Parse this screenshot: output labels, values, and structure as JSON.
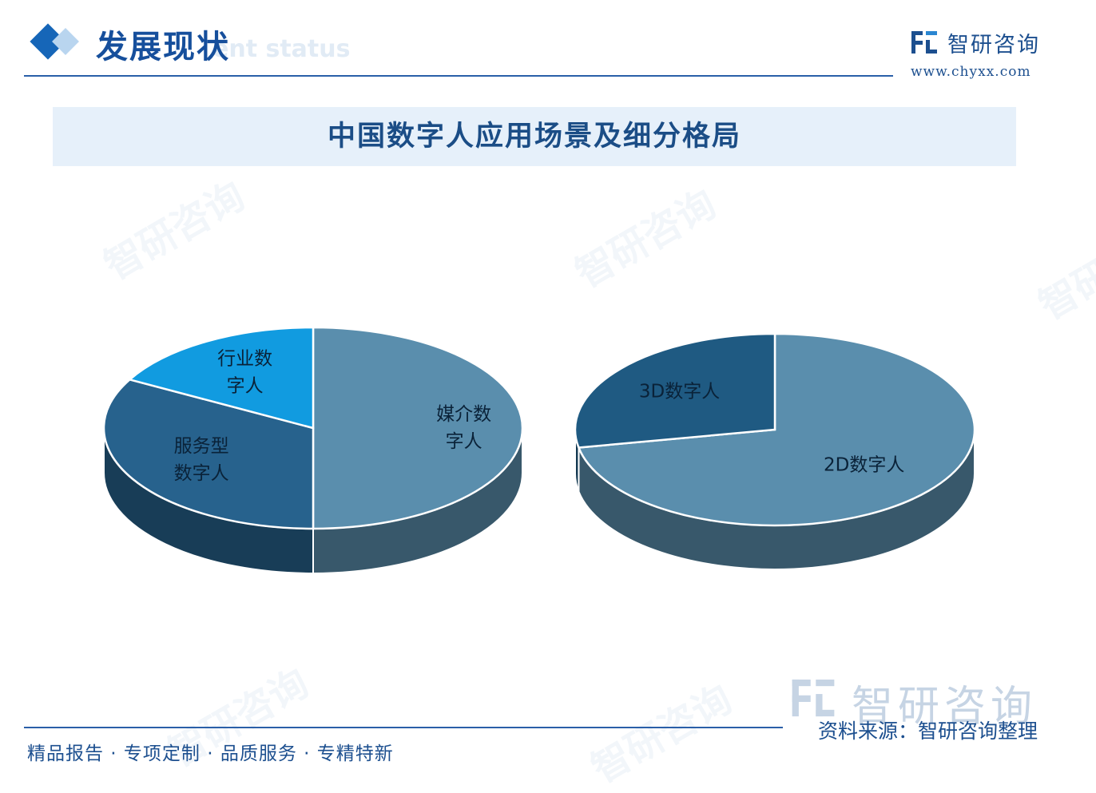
{
  "header": {
    "section_title": "发展现状",
    "section_subtitle": "ent status",
    "brand_name": "智研咨询",
    "brand_url": "www.chyxx.com"
  },
  "watermark": {
    "text": "智研咨询"
  },
  "chart_title": "中国数字人应用场景及细分格局",
  "chart_data": [
    {
      "type": "pie",
      "style": "3d",
      "slices": [
        {
          "label": "媒介数字人",
          "lines": [
            "媒介数",
            "字人"
          ],
          "value": 50,
          "color": "#5a8ead"
        },
        {
          "label": "服务型数字人",
          "lines": [
            "服务型",
            "数字人"
          ],
          "value": 33,
          "color": "#27628d"
        },
        {
          "label": "行业数字人",
          "lines": [
            "行业数",
            "字人"
          ],
          "value": 17,
          "color": "#119be0"
        }
      ]
    },
    {
      "type": "pie",
      "style": "3d",
      "slices": [
        {
          "label": "2D数字人",
          "lines": [
            "2D数字人"
          ],
          "value": 72,
          "color": "#5a8ead"
        },
        {
          "label": "3D数字人",
          "lines": [
            "3D数字人"
          ],
          "value": 28,
          "color": "#1f5a82"
        }
      ]
    }
  ],
  "footer": {
    "slogan": "精品报告 · 专项定制 · 品质服务 · 专精特新",
    "logo_text": "智研咨询",
    "source": "资料来源：智研咨询整理"
  }
}
